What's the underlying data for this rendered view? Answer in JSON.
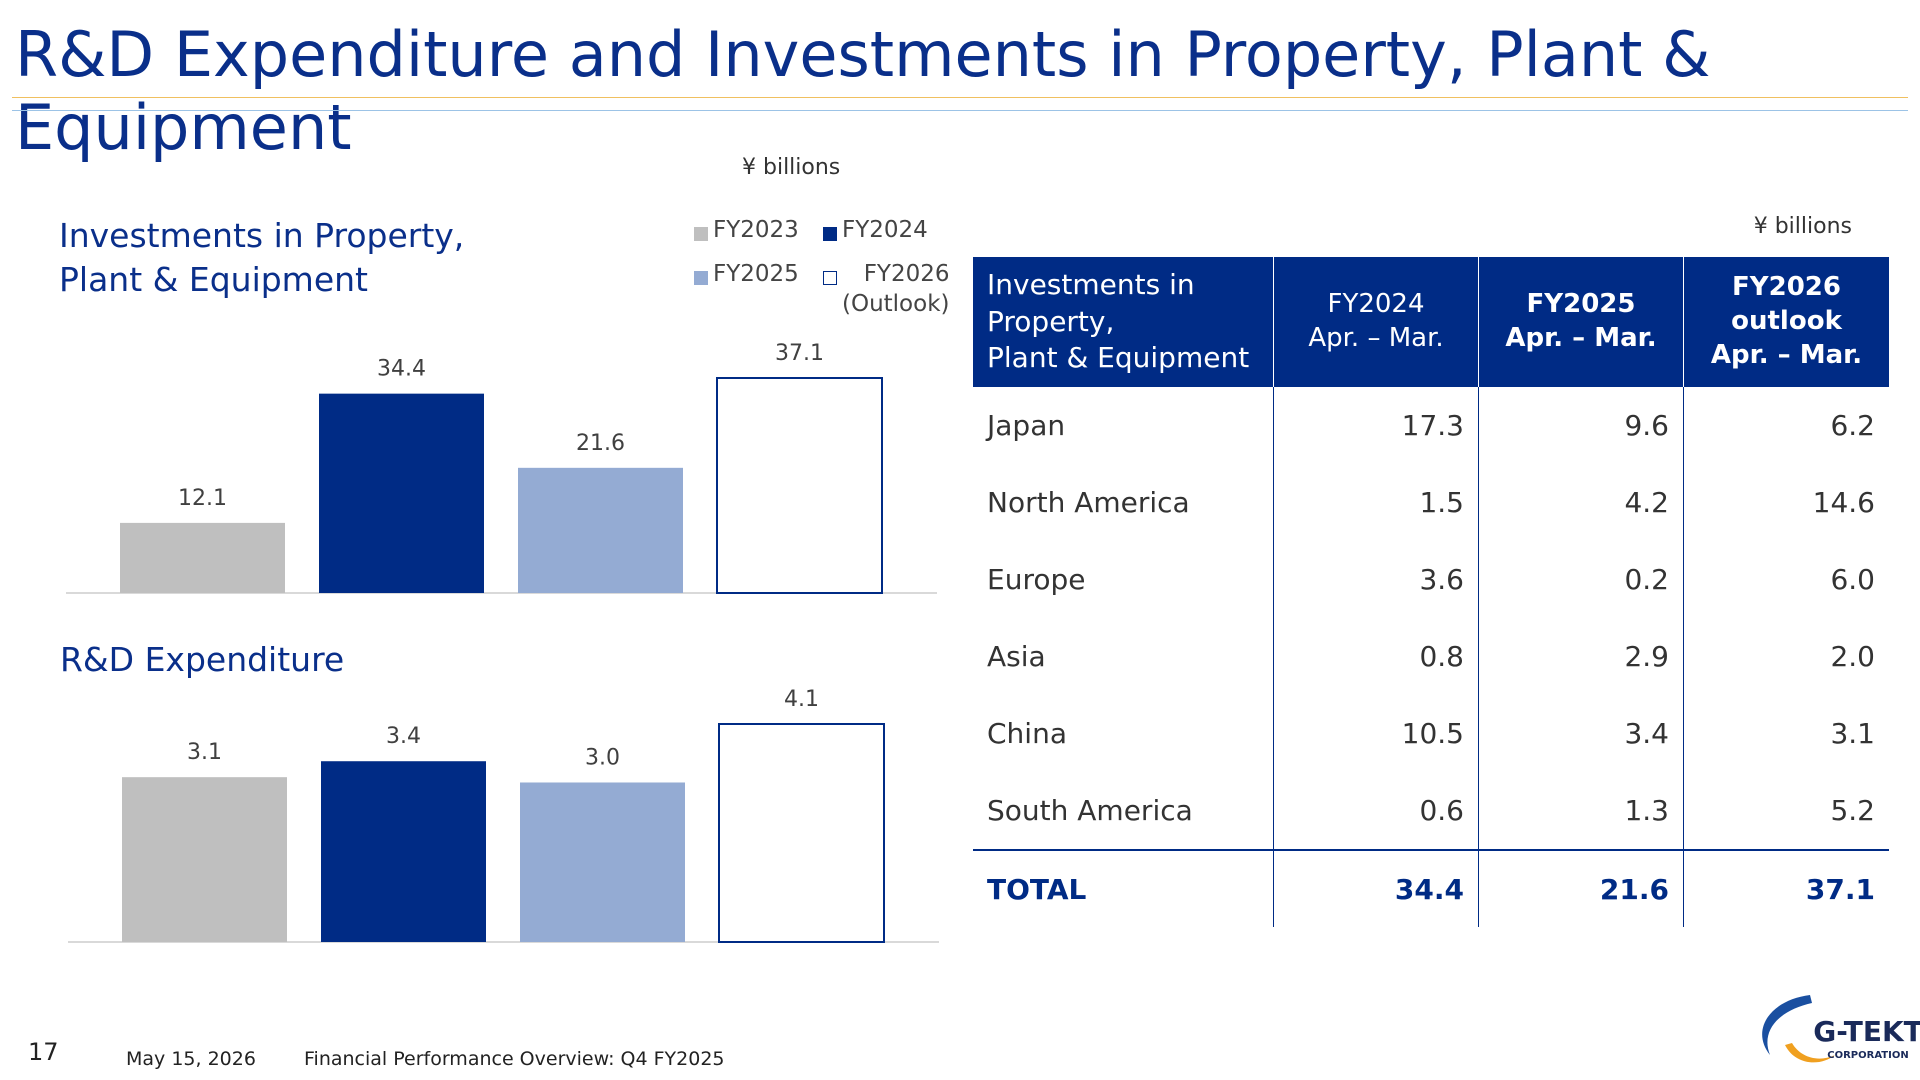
{
  "header": {
    "title": "R&D Expenditure and Investments in Property, Plant & Equipment"
  },
  "chart_unit": "¥ billions",
  "chart_data": [
    {
      "type": "bar",
      "title": "Investments in Property,\nPlant & Equipment",
      "legend": "top-right",
      "series": [
        {
          "name": "FY2023",
          "color": "#bfbfbf",
          "values": [
            12.1
          ]
        },
        {
          "name": "FY2024",
          "color": "#002b85",
          "values": [
            34.4
          ]
        },
        {
          "name": "FY2025",
          "color": "#94abd3",
          "values": [
            21.6
          ]
        },
        {
          "name": "FY2026\n(Outlook)",
          "color": "#ffffff",
          "edgecolor": "#002b85",
          "values": [
            37.1
          ]
        }
      ]
    },
    {
      "type": "bar",
      "title": "R&D Expenditure",
      "series": [
        {
          "color": "#bfbfbf",
          "values": [
            3.1
          ]
        },
        {
          "color": "#002b85",
          "values": [
            3.4
          ]
        },
        {
          "color": "#94abd3",
          "values": [
            3
          ],
          "value_labels": [
            "3.0"
          ]
        },
        {
          "color": "#ffffff",
          "edgecolor": "#002b85",
          "values": [
            4.1
          ]
        }
      ]
    }
  ],
  "table": {
    "unit": "¥ billions",
    "columns": [
      "Investments in\nProperty,\nPlant & Equipment",
      "FY2024\nApr. – Mar.",
      "FY2025\nApr. – Mar.",
      "FY2026\noutlook\nApr. – Mar."
    ],
    "rows": [
      [
        "Japan",
        "17.3",
        "9.6",
        "6.2"
      ],
      [
        "North America",
        "1.5",
        "4.2",
        "14.6"
      ],
      [
        "Europe",
        "3.6",
        "0.2",
        "6.0"
      ],
      [
        "Asia",
        "0.8",
        "2.9",
        "2.0"
      ],
      [
        "China",
        "10.5",
        "3.4",
        "3.1"
      ],
      [
        "South America",
        "0.6",
        "1.3",
        "5.2"
      ]
    ],
    "total": [
      "TOTAL",
      "34.4",
      "21.6",
      "37.1"
    ]
  },
  "footer": {
    "page": "17",
    "date": "May 15, 2026",
    "text": "Financial Performance Overview: Q4 FY2025"
  },
  "logo": {
    "name": "G-TEKT",
    "sub": "CORPORATION"
  }
}
